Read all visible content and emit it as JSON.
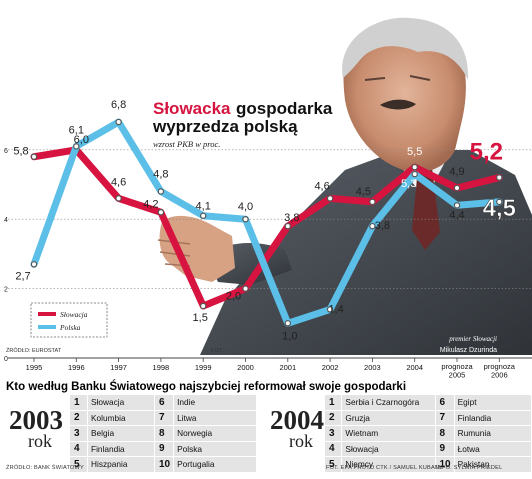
{
  "chart_data": {
    "type": "line",
    "title_red": "Słowacka",
    "title_black_1": "gospodarka",
    "title_black_2": "wyprzedza polską",
    "subtitle": "wzrost PKB w proc.",
    "categories": [
      "1995",
      "1996",
      "1997",
      "1998",
      "1999",
      "2000",
      "2001",
      "2002",
      "2003",
      "2004",
      "prognoza 2005",
      "prognoza 2006"
    ],
    "category_lines": [
      [
        "1995"
      ],
      [
        "1996"
      ],
      [
        "1997"
      ],
      [
        "1998"
      ],
      [
        "1999"
      ],
      [
        "2000"
      ],
      [
        "2001"
      ],
      [
        "2002"
      ],
      [
        "2003"
      ],
      [
        "2004"
      ],
      [
        "prognoza",
        "2005"
      ],
      [
        "prognoza",
        "2006"
      ]
    ],
    "yticks": [
      0,
      2,
      4,
      6
    ],
    "ylim": [
      0,
      7.5
    ],
    "grid": true,
    "legend_position": "bottom-left",
    "series": [
      {
        "name": "Słowacja",
        "color": "#d6143f",
        "values": [
          5.8,
          6.0,
          4.6,
          4.2,
          1.5,
          2.0,
          3.8,
          4.6,
          4.5,
          5.5,
          4.9,
          5.2
        ],
        "labels": [
          "5,8",
          "6,0",
          "4,6",
          "4,2",
          "1,5",
          "2,0",
          "3,8",
          "4,6",
          "4,5",
          "5,5",
          "4,9",
          "5,2"
        ]
      },
      {
        "name": "Polska",
        "color": "#5bbfe8",
        "values": [
          2.7,
          6.1,
          6.8,
          4.8,
          4.1,
          4.0,
          1.0,
          1.4,
          3.8,
          5.3,
          4.4,
          4.5
        ],
        "labels": [
          "2,7",
          "6,1",
          "6,8",
          "4,8",
          "4,1",
          "4,0",
          "1,0",
          "1,4",
          "3,8",
          "5,3",
          "4,4",
          "4,5"
        ]
      }
    ]
  },
  "photo": {
    "caption_1": "premier Słowacji",
    "caption_2": "Mikulasz Dzurinda",
    "credit_left": "ŹRÓDŁO: EUROSTAT",
    "credit_mid": "FOT."
  },
  "reform": {
    "heading": "Kto według Banku Światowego najszybciej reformował swoje gospodarki",
    "year_word": "rok",
    "lists": [
      {
        "year": "2003",
        "items": [
          "Słowacja",
          "Kolumbia",
          "Belgia",
          "Finlandia",
          "Hiszpania",
          "Indie",
          "Litwa",
          "Norwegia",
          "Polska",
          "Portugalia"
        ]
      },
      {
        "year": "2004",
        "items": [
          "Serbia i Czarnogóra",
          "Gruzja",
          "Wietnam",
          "Słowacja",
          "Niemcy",
          "Egipt",
          "Finlandia",
          "Rumunia",
          "Łotwa",
          "Pakistan"
        ]
      }
    ]
  },
  "footer": {
    "source": "ŹRÓDŁO: BANK ŚWIATOWY",
    "photo_credit": "FOT. EPA PHOTO CTK / SAMUEL KUBANI",
    "info": "INFO. SYLWIA PRIEDEL"
  }
}
